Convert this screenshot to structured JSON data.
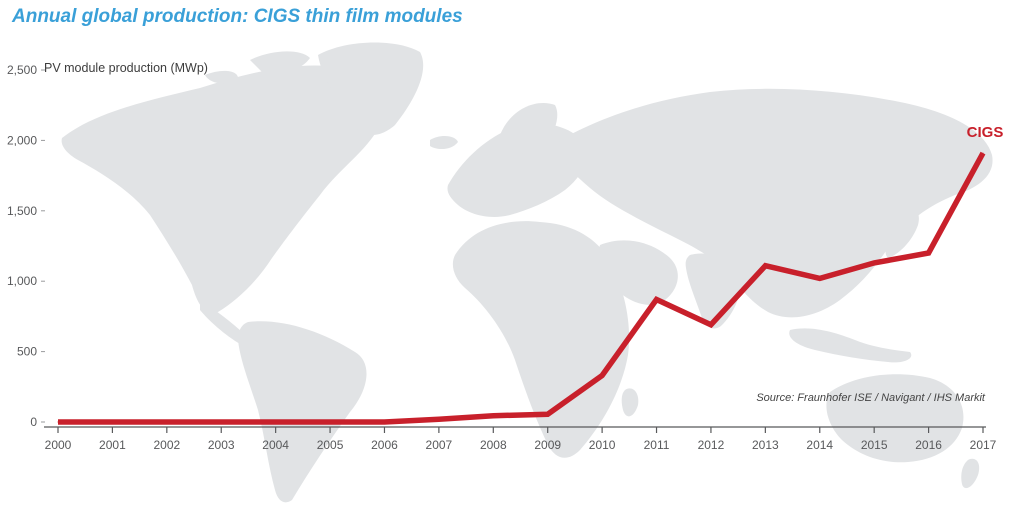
{
  "chart_data": {
    "type": "line",
    "title": "Annual global production: CIGS thin film modules",
    "ylabel": "PV module production (MWp)",
    "xlabel": "",
    "source": "Source: Fraunhofer ISE / Navigant / IHS Markit",
    "x": [
      "2000",
      "2001",
      "2002",
      "2003",
      "2004",
      "2005",
      "2006",
      "2007",
      "2008",
      "2009",
      "2010",
      "2011",
      "2012",
      "2013",
      "2014",
      "2015",
      "2016",
      "2017"
    ],
    "yticks": [
      0,
      500,
      1000,
      1500,
      2000,
      2500
    ],
    "ytick_labels": [
      "0",
      "500",
      "1,000",
      "1,500",
      "2,000",
      "2,500"
    ],
    "ylim": [
      0,
      2500
    ],
    "grid": false,
    "legend": "none",
    "background": "world-map",
    "series": [
      {
        "name": "CIGS",
        "color": "#c8202b",
        "values": [
          0,
          0,
          0,
          0,
          0,
          0,
          0,
          20,
          45,
          55,
          330,
          870,
          690,
          1110,
          1020,
          1130,
          1200,
          1910
        ]
      }
    ]
  },
  "colors": {
    "title": "#3aa0d8",
    "map": "#e1e3e5",
    "axis": "#58595b",
    "series": "#c8202b"
  }
}
